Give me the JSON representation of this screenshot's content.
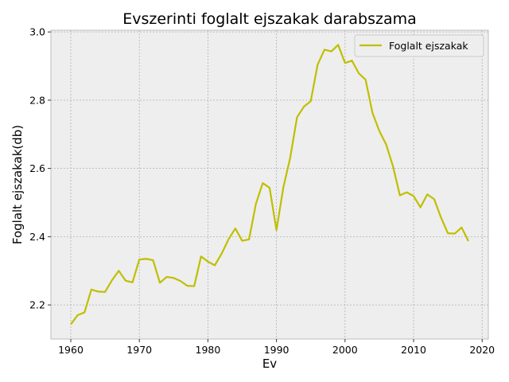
{
  "chart_data": {
    "type": "line",
    "title": "Evszerinti foglalt ejszakak darabszama",
    "xlabel": "Ev",
    "ylabel": "Foglalt ejszakak(db)",
    "xlim": [
      1957.1,
      2020.9
    ],
    "ylim": [
      2.1,
      3.005
    ],
    "xticks": [
      1960,
      1970,
      1980,
      1990,
      2000,
      2010,
      2020
    ],
    "yticks": [
      2.2,
      2.4,
      2.6,
      2.8,
      3.0
    ],
    "xtick_labels": [
      "1960",
      "1970",
      "1980",
      "1990",
      "2000",
      "2010",
      "2020"
    ],
    "ytick_labels": [
      "2.2",
      "2.4",
      "2.6",
      "2.8",
      "3.0"
    ],
    "grid": true,
    "legend_position": "top-right",
    "series": [
      {
        "name": "Foglalt ejszakak",
        "color": "#bfbf00",
        "x": [
          1960,
          1961,
          1962,
          1963,
          1964,
          1965,
          1966,
          1967,
          1968,
          1969,
          1970,
          1971,
          1972,
          1973,
          1974,
          1975,
          1976,
          1977,
          1978,
          1979,
          1980,
          1981,
          1982,
          1983,
          1984,
          1985,
          1986,
          1987,
          1988,
          1989,
          1990,
          1991,
          1992,
          1993,
          1994,
          1995,
          1996,
          1997,
          1998,
          1999,
          2000,
          2001,
          2002,
          2003,
          2004,
          2005,
          2006,
          2007,
          2008,
          2009,
          2010,
          2011,
          2012,
          2013,
          2014,
          2015,
          2016,
          2017,
          2018
        ],
        "values": [
          2.143,
          2.17,
          2.178,
          2.245,
          2.239,
          2.238,
          2.272,
          2.3,
          2.271,
          2.266,
          2.333,
          2.335,
          2.331,
          2.265,
          2.282,
          2.279,
          2.27,
          2.256,
          2.255,
          2.342,
          2.327,
          2.316,
          2.35,
          2.392,
          2.424,
          2.388,
          2.392,
          2.496,
          2.557,
          2.543,
          2.419,
          2.544,
          2.631,
          2.75,
          2.781,
          2.797,
          2.904,
          2.948,
          2.943,
          2.962,
          2.909,
          2.916,
          2.879,
          2.86,
          2.763,
          2.71,
          2.67,
          2.606,
          2.521,
          2.53,
          2.519,
          2.486,
          2.524,
          2.51,
          2.456,
          2.41,
          2.409,
          2.427,
          2.387
        ]
      }
    ]
  }
}
